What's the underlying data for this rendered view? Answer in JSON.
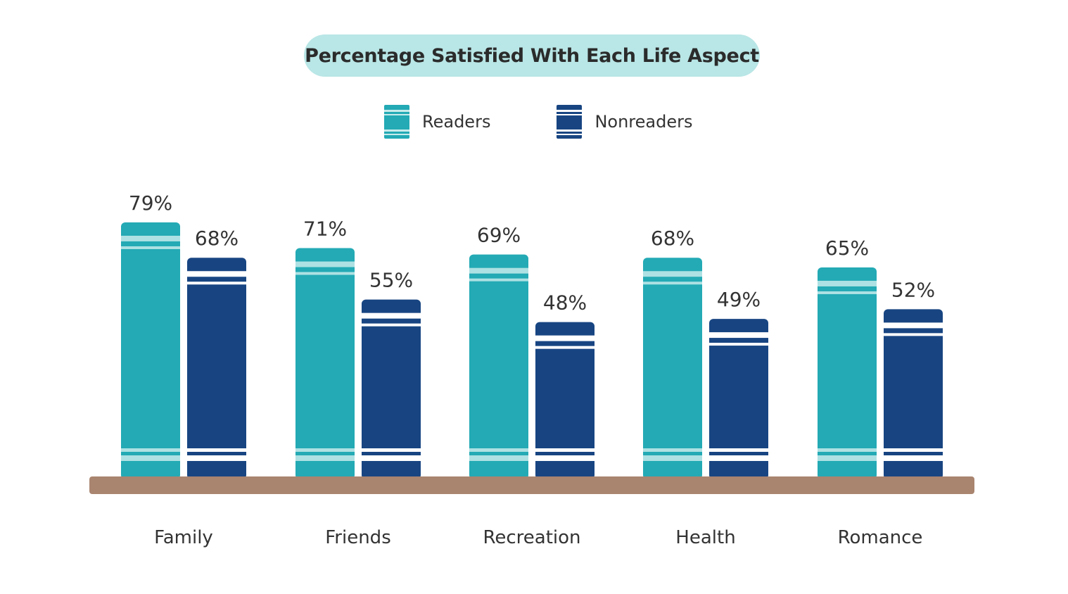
{
  "chart_data": {
    "type": "bar",
    "title": "Percentage Satisfied With Each Life Aspect",
    "categories": [
      "Family",
      "Friends",
      "Recreation",
      "Health",
      "Romance"
    ],
    "series": [
      {
        "name": "Readers",
        "values": [
          79,
          71,
          69,
          68,
          65
        ],
        "labels": [
          "79%",
          "71%",
          "69%",
          "68%",
          "65%"
        ],
        "color": "#23aab5"
      },
      {
        "name": "Nonreaders",
        "values": [
          68,
          55,
          48,
          49,
          52
        ],
        "labels": [
          "68%",
          "55%",
          "48%",
          "49%",
          "52%"
        ],
        "color": "#184582"
      }
    ],
    "ylim": [
      0,
      100
    ],
    "legend": "top",
    "grid": false,
    "shelf_color": "#a9846f"
  }
}
